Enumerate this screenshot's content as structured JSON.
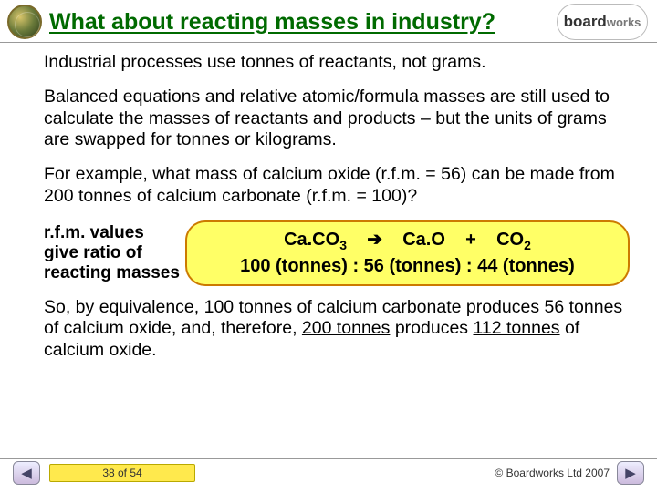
{
  "header": {
    "title": "What about reacting masses in industry?",
    "logo_right_bold": "board",
    "logo_right_light": "works"
  },
  "body": {
    "p1": "Industrial processes use tonnes of reactants, not grams.",
    "p2": "Balanced equations and relative atomic/formula masses are still used to calculate the masses of reactants and products – but the units of grams are swapped for tonnes or kilograms.",
    "p3": "For example, what mass of calcium oxide (r.f.m. = 56) can be made from 200 tonnes of calcium carbonate (r.f.m. = 100)?",
    "eq_label_l1": "r.f.m. values",
    "eq_label_l2": "give ratio of",
    "eq_label_l3": "reacting masses",
    "eq_line1_a": "Ca.CO",
    "eq_line1_b": "Ca.O",
    "eq_line1_plus": "+",
    "eq_line1_c": "CO",
    "eq_line2": "100 (tonnes) : 56 (tonnes) : 44 (tonnes)",
    "p4a": "So, by equivalence, 100 tonnes of calcium carbonate produces 56 tonnes of calcium oxide, and, therefore, ",
    "p4b": "200 tonnes",
    "p4c": " produces ",
    "p4d": "112 tonnes",
    "p4e": " of calcium oxide."
  },
  "footer": {
    "page": "38 of 54",
    "copyright": "© Boardworks Ltd 2007",
    "prev": "◀",
    "next": "▶"
  },
  "style": {
    "title_color": "#006a00",
    "eq_bg": "#ffff66",
    "eq_border": "#cc7a00",
    "pagebar_bg": "#ffe94d"
  }
}
